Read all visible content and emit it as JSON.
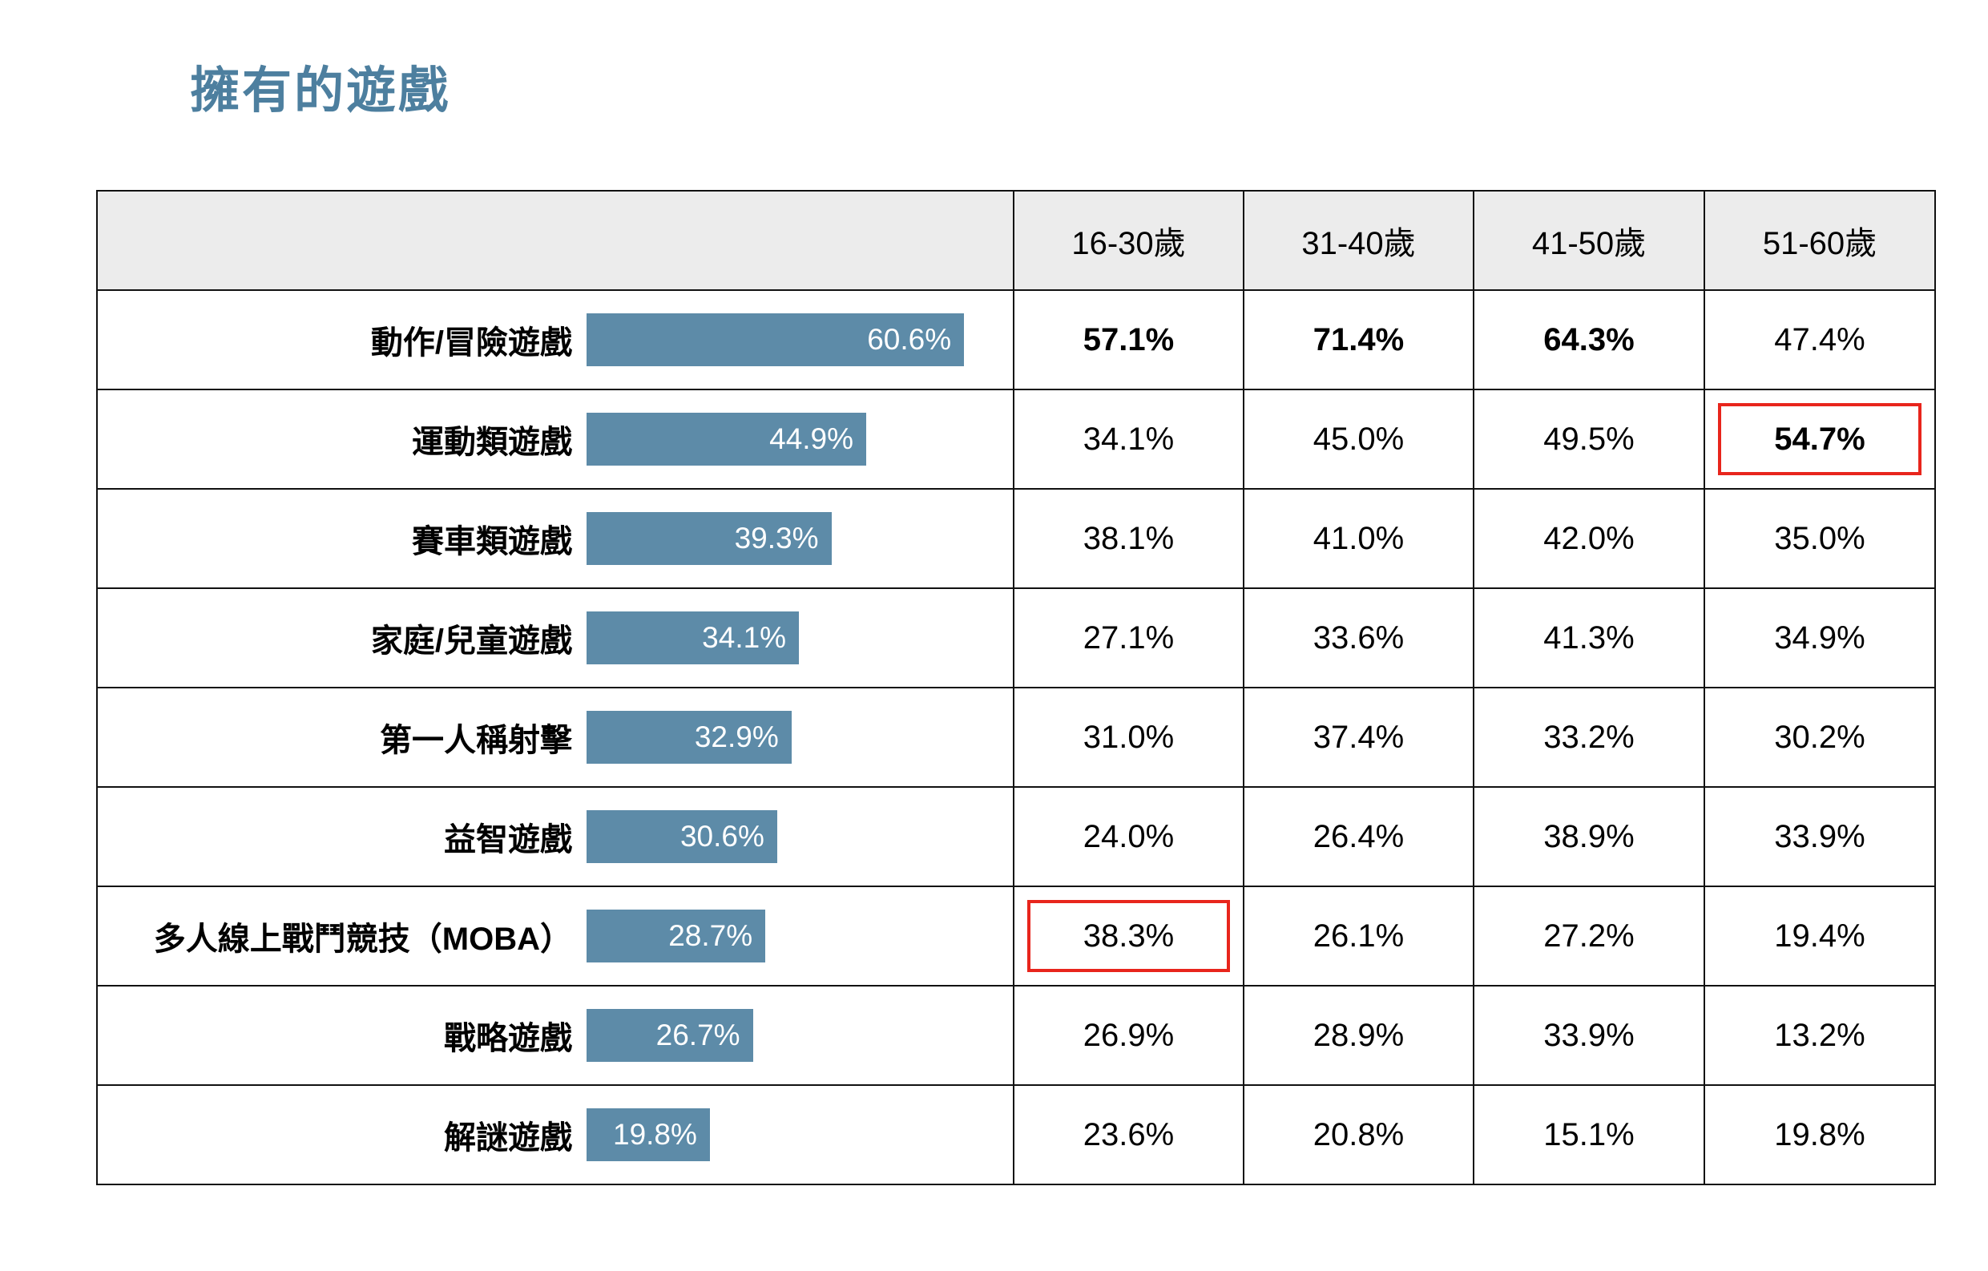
{
  "page": {
    "title": "擁有的遊戲"
  },
  "colors": {
    "accent": "#4d7f9f",
    "bar": "#5d8ba8",
    "header_bg": "#ececec",
    "highlight_border": "#e8251c"
  },
  "chart_data": {
    "type": "table",
    "title": "擁有的遊戲",
    "columns": [
      "16-30歲",
      "31-40歲",
      "41-50歲",
      "51-60歲"
    ],
    "bar_axis_max": 62,
    "legend_position": "none",
    "rows": [
      {
        "label": "動作/冒險遊戲",
        "overall": 60.6,
        "overall_label": "60.6%",
        "cells": [
          "57.1%",
          "71.4%",
          "64.3%",
          "47.4%"
        ]
      },
      {
        "label": "運動類遊戲",
        "overall": 44.9,
        "overall_label": "44.9%",
        "cells": [
          "34.1%",
          "45.0%",
          "49.5%",
          "54.7%"
        ]
      },
      {
        "label": "賽車類遊戲",
        "overall": 39.3,
        "overall_label": "39.3%",
        "cells": [
          "38.1%",
          "41.0%",
          "42.0%",
          "35.0%"
        ]
      },
      {
        "label": "家庭/兒童遊戲",
        "overall": 34.1,
        "overall_label": "34.1%",
        "cells": [
          "27.1%",
          "33.6%",
          "41.3%",
          "34.9%"
        ]
      },
      {
        "label": "第一人稱射擊",
        "overall": 32.9,
        "overall_label": "32.9%",
        "cells": [
          "31.0%",
          "37.4%",
          "33.2%",
          "30.2%"
        ]
      },
      {
        "label": "益智遊戲",
        "overall": 30.6,
        "overall_label": "30.6%",
        "cells": [
          "24.0%",
          "26.4%",
          "38.9%",
          "33.9%"
        ]
      },
      {
        "label": "多人線上戰鬥競技（MOBA）",
        "overall": 28.7,
        "overall_label": "28.7%",
        "cells": [
          "38.3%",
          "26.1%",
          "27.2%",
          "19.4%"
        ]
      },
      {
        "label": "戰略遊戲",
        "overall": 26.7,
        "overall_label": "26.7%",
        "cells": [
          "26.9%",
          "28.9%",
          "33.9%",
          "13.2%"
        ]
      },
      {
        "label": "解謎遊戲",
        "overall": 19.8,
        "overall_label": "19.8%",
        "cells": [
          "23.6%",
          "20.8%",
          "15.1%",
          "19.8%"
        ]
      }
    ],
    "bold_cells": [
      [
        0,
        0
      ],
      [
        0,
        1
      ],
      [
        0,
        2
      ],
      [
        1,
        3
      ]
    ],
    "boxed_cells": [
      [
        1,
        3
      ],
      [
        6,
        0
      ]
    ]
  }
}
